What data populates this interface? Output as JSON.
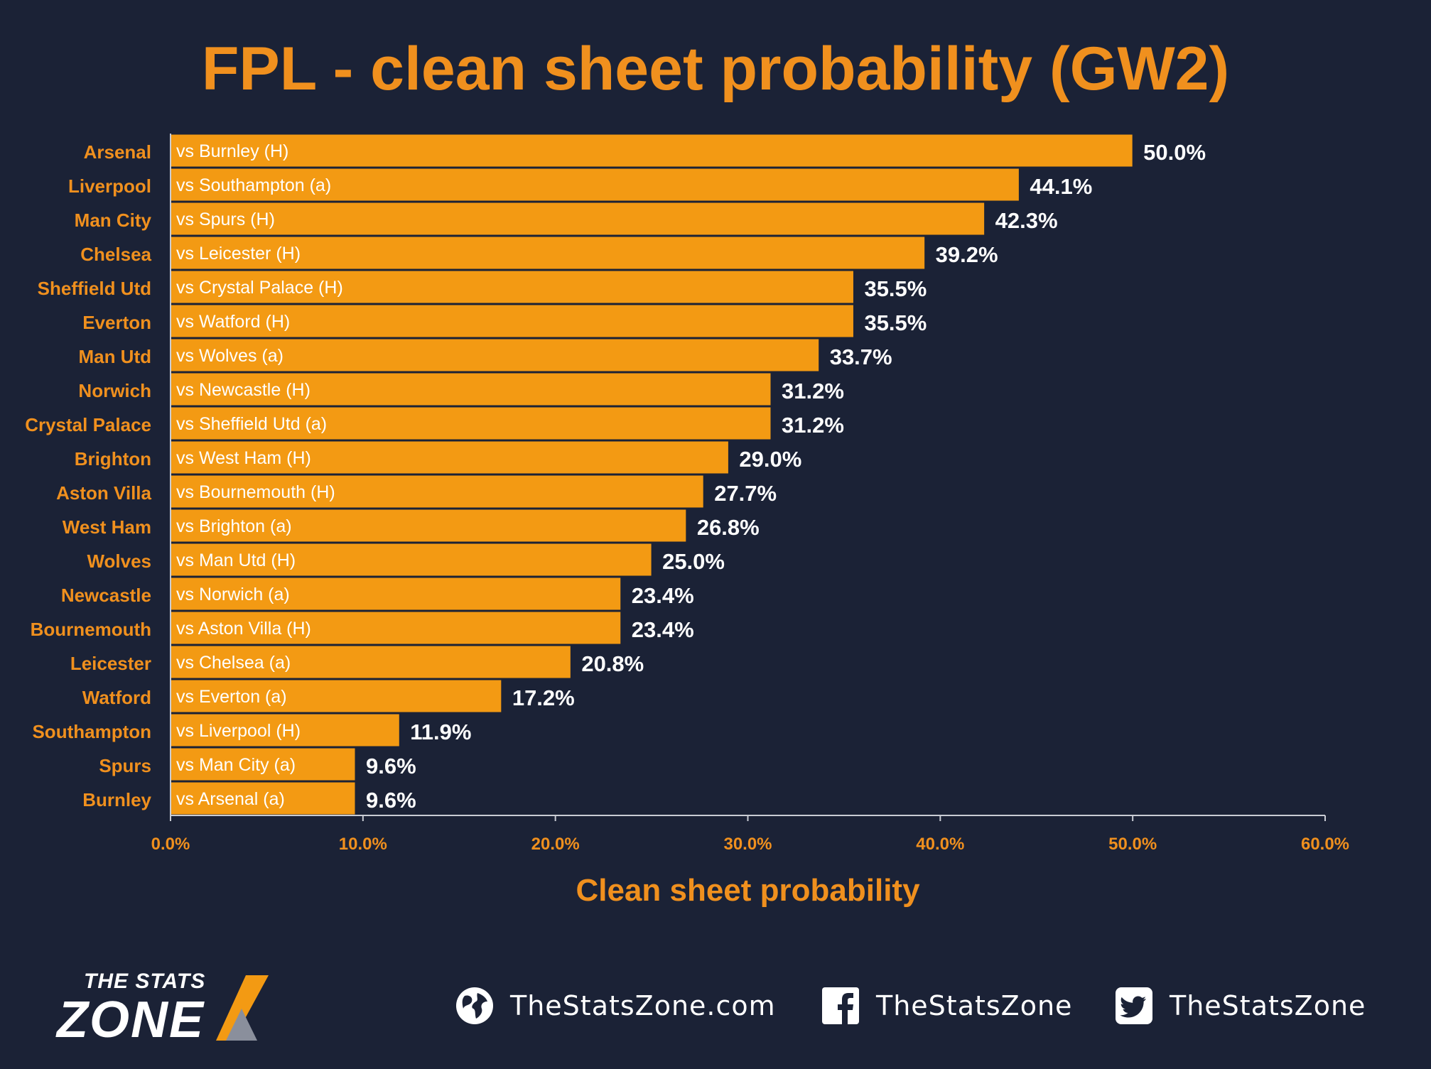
{
  "title": "FPL - clean sheet probability (GW2)",
  "colors": {
    "background": "#1b2236",
    "bar": "#f39a13",
    "accent_text": "#f0901e",
    "value_text": "#ffffff"
  },
  "chart_data": {
    "type": "bar",
    "orientation": "horizontal",
    "title": "FPL - clean sheet probability (GW2)",
    "xlabel": "Clean sheet probability",
    "ylabel": "",
    "xlim": [
      0,
      60
    ],
    "x_tick_labels": [
      "0.0%",
      "10.0%",
      "20.0%",
      "30.0%",
      "40.0%",
      "50.0%",
      "60.0%"
    ],
    "categories": [
      "Arsenal",
      "Liverpool",
      "Man City",
      "Chelsea",
      "Sheffield Utd",
      "Everton",
      "Man Utd",
      "Norwich",
      "Crystal Palace",
      "Brighton",
      "Aston Villa",
      "West Ham",
      "Wolves",
      "Newcastle",
      "Bournemouth",
      "Leicester",
      "Watford",
      "Southampton",
      "Spurs",
      "Burnley"
    ],
    "fixtures": [
      "vs Burnley (H)",
      "vs Southampton (a)",
      "vs Spurs (H)",
      "vs Leicester (H)",
      "vs Crystal Palace (H)",
      "vs Watford (H)",
      "vs Wolves (a)",
      "vs Newcastle (H)",
      "vs Sheffield Utd (a)",
      "vs West Ham (H)",
      "vs Bournemouth (H)",
      "vs Brighton (a)",
      "vs Man Utd (H)",
      "vs Norwich (a)",
      "vs Aston Villa (H)",
      "vs Chelsea (a)",
      "vs Everton (a)",
      "vs Liverpool (H)",
      "vs Man City (a)",
      "vs Arsenal (a)"
    ],
    "values": [
      50.0,
      44.1,
      42.3,
      39.2,
      35.5,
      35.5,
      33.7,
      31.2,
      31.2,
      29.0,
      27.7,
      26.8,
      25.0,
      23.4,
      23.4,
      20.8,
      17.2,
      11.9,
      9.6,
      9.6
    ],
    "value_labels": [
      "50.0%",
      "44.1%",
      "42.3%",
      "39.2%",
      "35.5%",
      "35.5%",
      "33.7%",
      "31.2%",
      "31.2%",
      "29.0%",
      "27.7%",
      "26.8%",
      "25.0%",
      "23.4%",
      "23.4%",
      "20.8%",
      "17.2%",
      "11.9%",
      "9.6%",
      "9.6%"
    ],
    "grid": false,
    "legend": "none"
  },
  "footer": {
    "logo_top": "THE STATS",
    "logo_main": "ZONE",
    "website": "TheStatsZone.com",
    "facebook": "TheStatsZone",
    "twitter": "TheStatsZone",
    "icons": [
      "globe-icon",
      "facebook-icon",
      "twitter-icon"
    ]
  }
}
